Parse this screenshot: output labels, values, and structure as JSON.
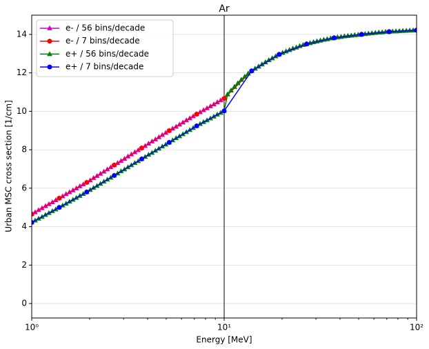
{
  "chart_data": {
    "type": "line",
    "title": "Ar",
    "xlabel": "Energy [MeV]",
    "ylabel": "Urban MSC cross section [1/cm]",
    "xscale": "log",
    "xlim": [
      1,
      100
    ],
    "xticks": [
      {
        "value": 1,
        "label": "10⁰"
      },
      {
        "value": 10,
        "label": "10¹"
      },
      {
        "value": 100,
        "label": "10²"
      }
    ],
    "xminorticks": [
      2,
      3,
      4,
      5,
      6,
      7,
      8,
      9,
      20,
      30,
      40,
      50,
      60,
      70,
      80,
      90
    ],
    "ylim": [
      -0.75,
      15
    ],
    "yticks": [
      0,
      2,
      4,
      6,
      8,
      10,
      12,
      14
    ],
    "grid": "y",
    "vline": 10,
    "legend": "upper left",
    "series": [
      {
        "name": "e- / 56 bins/decade",
        "color": "#cc00cc",
        "marker": "triangle",
        "x": [
          1,
          1.042,
          1.0857,
          1.1313,
          1.1788,
          1.2283,
          1.2799,
          1.3335,
          1.3895,
          1.4478,
          1.5086,
          1.5719,
          1.6379,
          1.7066,
          1.7783,
          1.8529,
          1.9307,
          2.0118,
          2.0962,
          2.1842,
          2.2758,
          2.3714,
          2.4709,
          2.5746,
          2.6827,
          2.7953,
          2.9126,
          3.0349,
          3.1623,
          3.295,
          3.4333,
          3.5775,
          3.7276,
          3.8841,
          4.0471,
          4.217,
          4.394,
          4.5784,
          4.7706,
          4.9708,
          5.1795,
          5.3969,
          5.6234,
          5.8594,
          6.1054,
          6.3616,
          6.6287,
          6.9069,
          7.1969,
          7.4989,
          7.8137,
          8.1417,
          8.4834,
          8.8395,
          9.2106,
          9.5972,
          10,
          10.42,
          10.857,
          11.313,
          11.788,
          12.283,
          12.799,
          13.335,
          13.895,
          14.478,
          15.086,
          15.719,
          16.379,
          17.066,
          17.783,
          18.529,
          19.307,
          20.118,
          20.962,
          21.842,
          22.758,
          23.714,
          24.709,
          25.746,
          26.827,
          27.953,
          29.126,
          30.349,
          31.623,
          32.95,
          34.333,
          35.775,
          37.276,
          38.841,
          40.471,
          42.17,
          43.94,
          45.784,
          47.706,
          49.708,
          51.795,
          53.969,
          56.234,
          58.594,
          61.054,
          63.616,
          66.287,
          69.069,
          71.969,
          74.989,
          78.137,
          81.417,
          84.834,
          88.395,
          92.106,
          95.972,
          100
        ],
        "values": [
          4.65,
          4.75,
          4.86,
          4.96,
          5.07,
          5.17,
          5.27,
          5.38,
          5.48,
          5.58,
          5.69,
          5.79,
          5.89,
          5.99,
          6.1,
          6.2,
          6.3,
          6.41,
          6.53,
          6.64,
          6.75,
          6.86,
          6.98,
          7.09,
          7.2,
          7.31,
          7.42,
          7.53,
          7.65,
          7.76,
          7.87,
          7.98,
          8.09,
          8.2,
          8.32,
          8.43,
          8.54,
          8.65,
          8.77,
          8.88,
          8.99,
          9.1,
          9.2,
          9.31,
          9.42,
          9.53,
          9.64,
          9.74,
          9.85,
          9.95,
          10.06,
          10.16,
          10.26,
          10.36,
          10.47,
          10.57,
          10.67,
          10.88,
          11.08,
          11.27,
          11.46,
          11.64,
          11.8,
          11.96,
          12.1,
          12.22,
          12.33,
          12.44,
          12.55,
          12.66,
          12.76,
          12.86,
          12.96,
          13.04,
          13.12,
          13.19,
          13.26,
          13.32,
          13.39,
          13.45,
          13.5,
          13.55,
          13.6,
          13.64,
          13.68,
          13.72,
          13.75,
          13.79,
          13.82,
          13.85,
          13.87,
          13.9,
          13.92,
          13.94,
          13.96,
          13.98,
          14.0,
          14.02,
          14.04,
          14.06,
          14.08,
          14.1,
          14.11,
          14.13,
          14.14,
          14.15,
          14.16,
          14.17,
          14.18,
          14.19,
          14.2,
          14.21,
          14.22
        ]
      },
      {
        "name": "e- / 7 bins/decade",
        "color": "#ff0000",
        "marker": "circle",
        "x": [
          1,
          1.3895,
          1.9307,
          2.6827,
          3.7276,
          5.1795,
          7.1969,
          10,
          13.895,
          19.307,
          26.827,
          37.276,
          51.795,
          71.969,
          100
        ],
        "values": [
          4.65,
          5.48,
          6.3,
          7.2,
          8.09,
          8.99,
          9.85,
          10.67,
          12.1,
          12.96,
          13.5,
          13.82,
          14.0,
          14.14,
          14.22
        ]
      },
      {
        "name": "e+ / 56 bins/decade",
        "color": "#008000",
        "marker": "triangle",
        "x": [
          1,
          1.042,
          1.0857,
          1.1313,
          1.1788,
          1.2283,
          1.2799,
          1.3335,
          1.3895,
          1.4478,
          1.5086,
          1.5719,
          1.6379,
          1.7066,
          1.7783,
          1.8529,
          1.9307,
          2.0118,
          2.0962,
          2.1842,
          2.2758,
          2.3714,
          2.4709,
          2.5746,
          2.6827,
          2.7953,
          2.9126,
          3.0349,
          3.1623,
          3.295,
          3.4333,
          3.5775,
          3.7276,
          3.8841,
          4.0471,
          4.217,
          4.394,
          4.5784,
          4.7706,
          4.9708,
          5.1795,
          5.3969,
          5.6234,
          5.8594,
          6.1054,
          6.3616,
          6.6287,
          6.9069,
          7.1969,
          7.4989,
          7.8137,
          8.1417,
          8.4834,
          8.8395,
          9.2106,
          9.5972,
          10,
          10.42,
          10.857,
          11.313,
          11.788,
          12.283,
          12.799,
          13.335,
          13.895,
          14.478,
          15.086,
          15.719,
          16.379,
          17.066,
          17.783,
          18.529,
          19.307,
          20.118,
          20.962,
          21.842,
          22.758,
          23.714,
          24.709,
          25.746,
          26.827,
          27.953,
          29.126,
          30.349,
          31.623,
          32.95,
          34.333,
          35.775,
          37.276,
          38.841,
          40.471,
          42.17,
          43.94,
          45.784,
          47.706,
          49.708,
          51.795,
          53.969,
          56.234,
          58.594,
          61.054,
          63.616,
          66.287,
          69.069,
          71.969,
          74.989,
          78.137,
          81.417,
          84.834,
          88.395,
          92.106,
          95.972,
          100
        ],
        "values": [
          4.22,
          4.32,
          4.42,
          4.51,
          4.61,
          4.71,
          4.81,
          4.9,
          5.0,
          5.1,
          5.2,
          5.3,
          5.4,
          5.5,
          5.6,
          5.7,
          5.8,
          5.91,
          6.02,
          6.12,
          6.23,
          6.34,
          6.45,
          6.55,
          6.66,
          6.77,
          6.88,
          6.98,
          7.09,
          7.2,
          7.31,
          7.41,
          7.52,
          7.63,
          7.74,
          7.84,
          7.95,
          8.06,
          8.17,
          8.27,
          8.38,
          8.49,
          8.6,
          8.7,
          8.81,
          8.92,
          9.03,
          9.13,
          9.24,
          9.34,
          9.44,
          9.53,
          9.63,
          9.73,
          9.83,
          9.92,
          10.02,
          10.88,
          11.08,
          11.27,
          11.46,
          11.64,
          11.8,
          11.96,
          12.1,
          12.22,
          12.33,
          12.44,
          12.55,
          12.66,
          12.76,
          12.86,
          12.96,
          13.04,
          13.12,
          13.19,
          13.26,
          13.32,
          13.39,
          13.45,
          13.5,
          13.55,
          13.6,
          13.64,
          13.68,
          13.72,
          13.75,
          13.79,
          13.82,
          13.85,
          13.87,
          13.9,
          13.92,
          13.94,
          13.96,
          13.98,
          14.0,
          14.02,
          14.04,
          14.06,
          14.08,
          14.1,
          14.11,
          14.13,
          14.14,
          14.15,
          14.16,
          14.17,
          14.18,
          14.19,
          14.2,
          14.21,
          14.22
        ]
      },
      {
        "name": "e+ / 7 bins/decade",
        "color": "#0000ff",
        "marker": "circle",
        "x": [
          1,
          1.3895,
          1.9307,
          2.6827,
          3.7276,
          5.1795,
          7.1969,
          10,
          13.895,
          19.307,
          26.827,
          37.276,
          51.795,
          71.969,
          100
        ],
        "values": [
          4.22,
          5.0,
          5.8,
          6.66,
          7.52,
          8.38,
          9.24,
          10.02,
          12.1,
          12.96,
          13.5,
          13.82,
          14.0,
          14.14,
          14.22
        ]
      }
    ]
  }
}
